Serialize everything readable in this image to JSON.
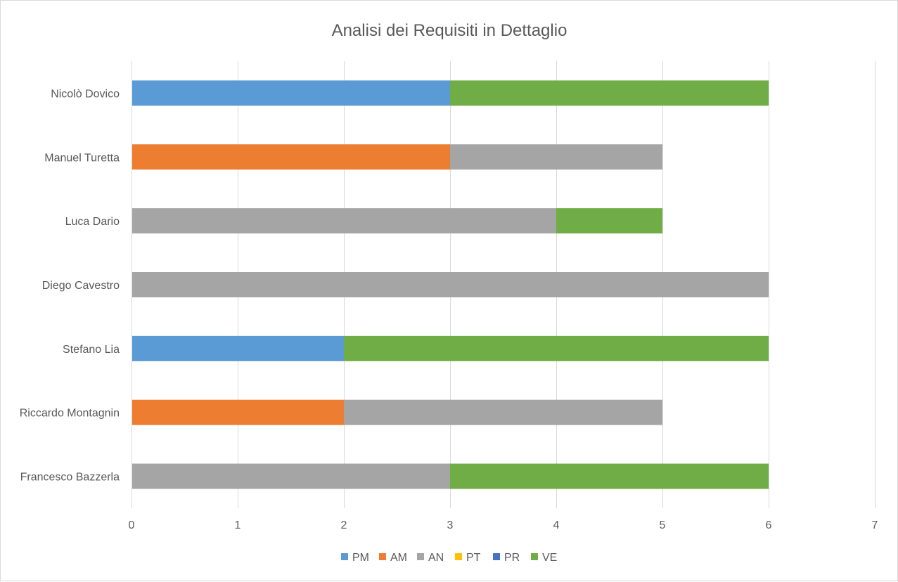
{
  "chart_data": {
    "type": "bar",
    "orientation": "horizontal",
    "stacked": true,
    "title": "Analisi dei Requisiti in Dettaglio",
    "xlabel": "",
    "ylabel": "",
    "xlim": [
      0,
      7
    ],
    "x_ticks": [
      "0",
      "1",
      "2",
      "3",
      "4",
      "5",
      "6",
      "7"
    ],
    "grid": true,
    "legend_position": "bottom",
    "categories": [
      "Nicolò Dovico",
      "Manuel Turetta",
      "Luca Dario",
      "Diego Cavestro",
      "Stefano Lia",
      "Riccardo Montagnin",
      "Francesco Bazzerla"
    ],
    "series": [
      {
        "name": "PM",
        "color": "#5b9bd5",
        "values": [
          3,
          0,
          0,
          0,
          2,
          0,
          0
        ]
      },
      {
        "name": "AM",
        "color": "#ed7d31",
        "values": [
          0,
          3,
          0,
          0,
          0,
          2,
          0
        ]
      },
      {
        "name": "AN",
        "color": "#a5a5a5",
        "values": [
          0,
          2,
          4,
          6,
          0,
          3,
          3
        ]
      },
      {
        "name": "PT",
        "color": "#ffc000",
        "values": [
          0,
          0,
          0,
          0,
          0,
          0,
          0
        ]
      },
      {
        "name": "PR",
        "color": "#4472c4",
        "values": [
          0,
          0,
          0,
          0,
          0,
          0,
          0
        ]
      },
      {
        "name": "VE",
        "color": "#70ad47",
        "values": [
          3,
          0,
          1,
          0,
          4,
          0,
          3
        ]
      }
    ]
  }
}
